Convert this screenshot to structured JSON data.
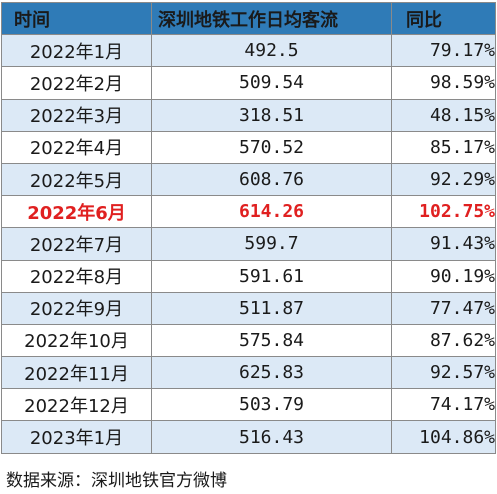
{
  "table": {
    "headers": [
      "时间",
      "深圳地铁工作日均客流",
      "同比"
    ],
    "rows": [
      {
        "time": "2022年1月",
        "flow": "492.5",
        "yoy": "79.17%"
      },
      {
        "time": "2022年2月",
        "flow": "509.54",
        "yoy": "98.59%"
      },
      {
        "time": "2022年3月",
        "flow": "318.51",
        "yoy": "48.15%"
      },
      {
        "time": "2022年4月",
        "flow": "570.52",
        "yoy": "85.17%"
      },
      {
        "time": "2022年5月",
        "flow": "608.76",
        "yoy": "92.29%"
      },
      {
        "time": "2022年6月",
        "flow": "614.26",
        "yoy": "102.75%"
      },
      {
        "time": "2022年7月",
        "flow": "599.7",
        "yoy": "91.43%"
      },
      {
        "time": "2022年8月",
        "flow": "591.61",
        "yoy": "90.19%"
      },
      {
        "time": "2022年9月",
        "flow": "511.87",
        "yoy": "77.47%"
      },
      {
        "time": "2022年10月",
        "flow": "575.84",
        "yoy": "87.62%"
      },
      {
        "time": "2022年11月",
        "flow": "625.83",
        "yoy": "92.57%"
      },
      {
        "time": "2022年12月",
        "flow": "503.79",
        "yoy": "74.17%"
      },
      {
        "time": "2023年1月",
        "flow": "516.43",
        "yoy": "104.86%"
      }
    ],
    "highlight_row_index": 5
  },
  "colors": {
    "header_bg": "#2f7bb7",
    "stripe_bg": "#dce9f6",
    "highlight_text": "#e02020"
  },
  "source": "数据来源：深圳地铁官方微博"
}
